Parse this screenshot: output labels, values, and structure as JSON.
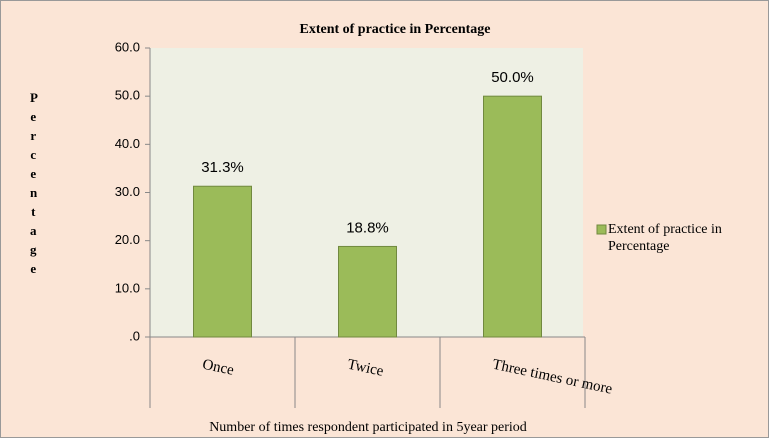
{
  "chart_data": {
    "type": "bar",
    "title": "Extent of practice in Percentage",
    "x_label": "Number of times respondent participated in 5year period",
    "y_label": "Percentage",
    "categories": [
      "Once",
      "Twice",
      "Three times or more"
    ],
    "series": [
      {
        "name": "Extent of practice in Percentage",
        "color": "#9bbb59",
        "values": [
          31.3,
          18.8,
          50.0
        ],
        "value_labels": [
          "31.3%",
          "18.8%",
          "50.0%"
        ]
      }
    ],
    "ylim": [
      0,
      60
    ],
    "yticks": [
      {
        "value": 0,
        "label": ".0"
      },
      {
        "value": 10,
        "label": "10.0"
      },
      {
        "value": 20,
        "label": "20.0"
      },
      {
        "value": 30,
        "label": "30.0"
      },
      {
        "value": 40,
        "label": "40.0"
      },
      {
        "value": 50,
        "label": "50.0"
      },
      {
        "value": 60,
        "label": "60.0"
      }
    ],
    "legend": "right"
  }
}
